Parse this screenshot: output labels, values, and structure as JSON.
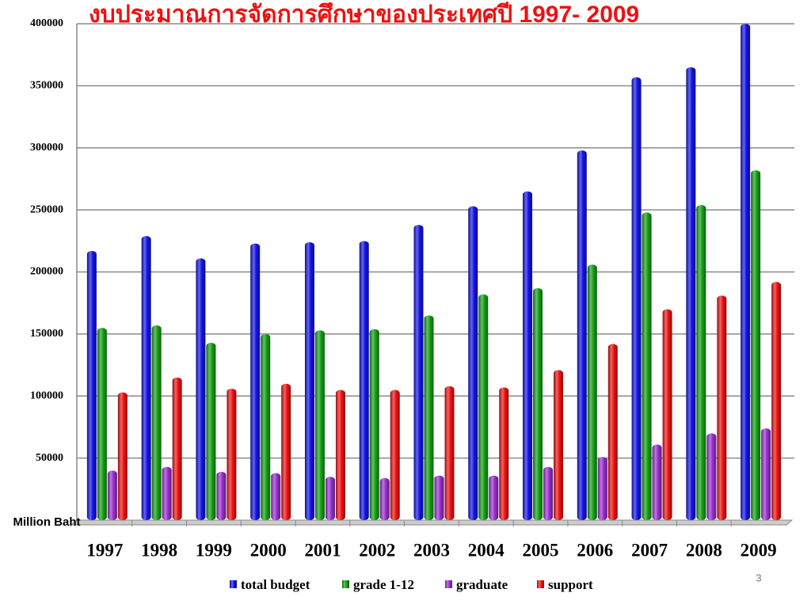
{
  "chart_data": {
    "type": "bar",
    "title": "งบประมาณการจัดการศึกษาของประเทศปี 1997- 2009",
    "y_axis_label": "Million Baht",
    "categories": [
      "1997",
      "1998",
      "1999",
      "2000",
      "2001",
      "2002",
      "2003",
      "2004",
      "2005",
      "2006",
      "2007",
      "2008",
      "2009"
    ],
    "series": [
      {
        "name": "total budget",
        "color": "#1414e6",
        "values": [
          215000,
          227000,
          209000,
          221000,
          222000,
          223000,
          236000,
          251000,
          263000,
          296000,
          355000,
          363000,
          398000
        ]
      },
      {
        "name": "grade 1-12",
        "color": "#16a016",
        "values": [
          153000,
          155000,
          141000,
          148000,
          151000,
          152000,
          163000,
          180000,
          185000,
          204000,
          246000,
          252000,
          280000
        ]
      },
      {
        "name": "graduate",
        "color": "#9a2fd0",
        "values": [
          38000,
          41000,
          37000,
          36000,
          33000,
          32000,
          34000,
          34000,
          41000,
          49000,
          59000,
          68000,
          72000
        ]
      },
      {
        "name": "support",
        "color": "#ee1212",
        "values": [
          101000,
          113000,
          104000,
          108000,
          103000,
          103000,
          106000,
          105000,
          119000,
          140000,
          168000,
          179000,
          190000
        ]
      }
    ],
    "ylim": [
      0,
      400000
    ],
    "yticks": [
      50000,
      100000,
      150000,
      200000,
      250000,
      300000,
      350000,
      400000
    ],
    "grid": true
  },
  "slide_number": "3"
}
